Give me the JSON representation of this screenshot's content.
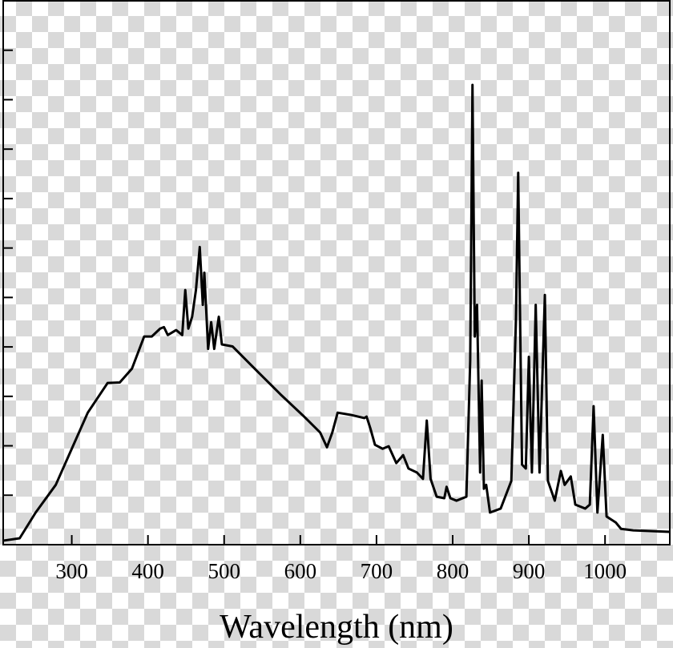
{
  "chart_data": {
    "type": "line",
    "xlabel": "Wavelength (nm)",
    "xlim": [
      210,
      1085
    ],
    "xticks": [
      300,
      400,
      500,
      600,
      700,
      800,
      900,
      1000
    ],
    "ylim": [
      0,
      11
    ],
    "yticks": [
      1,
      2,
      3,
      4,
      5,
      6,
      7,
      8,
      9,
      10
    ],
    "ytick_labels": false,
    "grid": false,
    "series": [
      {
        "color": "#000000",
        "x": [
          209.5,
          231.6,
          252.6,
          279,
          300,
          321,
          347,
          363,
          379,
          395,
          405,
          416,
          421,
          426,
          437,
          445,
          449,
          453,
          458,
          463,
          468,
          472,
          474,
          479,
          483,
          487,
          493,
          497,
          511,
          542,
          574,
          605,
          626,
          635,
          642,
          649,
          668,
          684,
          687,
          692,
          698,
          708,
          716,
          726,
          735,
          742,
          753,
          761,
          766,
          771,
          779,
          789,
          792,
          797,
          805,
          818,
          823,
          826,
          829,
          832,
          836,
          838,
          841,
          844,
          849,
          863,
          877,
          883,
          886,
          891,
          896,
          900,
          904,
          909,
          914,
          921,
          925,
          934,
          942,
          947,
          955,
          961,
          974,
          980,
          985,
          990,
          997,
          1002,
          1014,
          1021,
          1037,
          1085
        ],
        "values": [
          0.08,
          0.13,
          0.65,
          1.21,
          1.94,
          2.67,
          3.27,
          3.28,
          3.56,
          4.21,
          4.21,
          4.37,
          4.4,
          4.24,
          4.34,
          4.24,
          5.15,
          4.37,
          4.61,
          5.15,
          6.02,
          4.85,
          5.5,
          3.96,
          4.5,
          3.96,
          4.61,
          4.05,
          4.01,
          3.53,
          3.04,
          2.59,
          2.27,
          1.97,
          2.27,
          2.67,
          2.62,
          2.56,
          2.59,
          2.35,
          2.02,
          1.94,
          1.99,
          1.65,
          1.81,
          1.54,
          1.46,
          1.33,
          2.51,
          1.33,
          0.97,
          0.94,
          1.17,
          0.94,
          0.89,
          0.97,
          3.72,
          9.3,
          4.21,
          4.85,
          1.46,
          3.32,
          1.13,
          1.21,
          0.65,
          0.73,
          1.29,
          4.53,
          7.52,
          1.62,
          1.54,
          3.8,
          1.46,
          4.85,
          1.46,
          5.05,
          1.29,
          0.89,
          1.49,
          1.21,
          1.38,
          0.81,
          0.73,
          0.81,
          2.8,
          0.65,
          2.22,
          0.57,
          0.45,
          0.32,
          0.29,
          0.26
        ]
      }
    ]
  }
}
